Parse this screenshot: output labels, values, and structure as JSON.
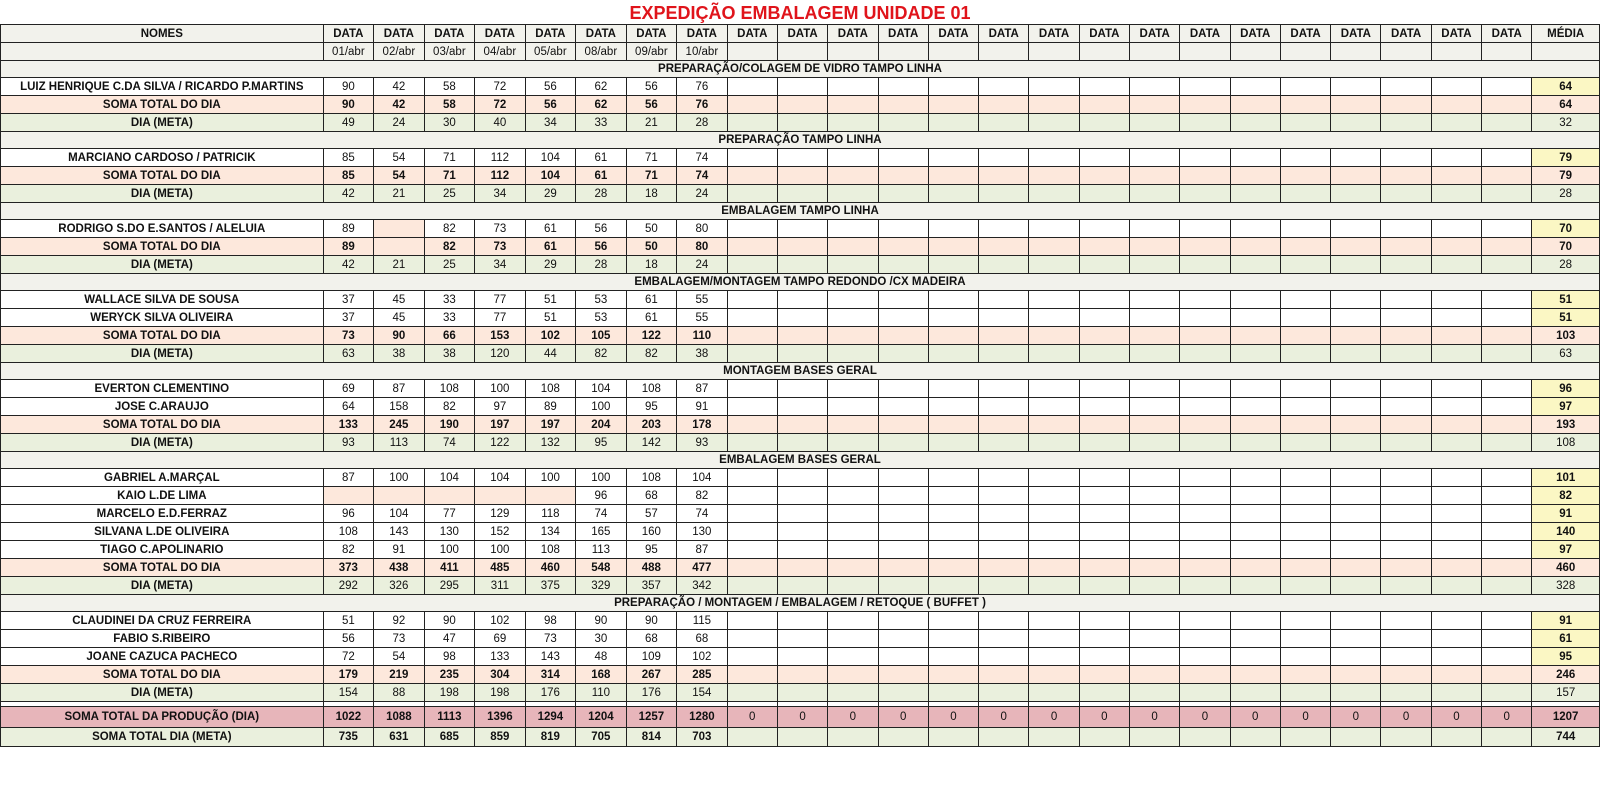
{
  "title": "EXPEDIÇÃO EMBALAGEM UNIDADE 01",
  "header": {
    "names": "NOMES",
    "data_label": "DATA",
    "avg_label": "MÉDIA",
    "dates": [
      "01/abr",
      "02/abr",
      "03/abr",
      "04/abr",
      "05/abr",
      "08/abr",
      "09/abr",
      "10/abr"
    ]
  },
  "labels": {
    "soma": "SOMA TOTAL DO DIA",
    "meta": "DIA (META)"
  },
  "sections": [
    {
      "title": "PREPARAÇÃO/COLAGEM DE VIDRO TAMPO LINHA",
      "people": [
        {
          "name": "LUIZ HENRIQUE C.DA SILVA / RICARDO P.MARTINS",
          "values": [
            "90",
            "42",
            "58",
            "72",
            "56",
            "62",
            "56",
            "76"
          ],
          "avg": "64"
        }
      ],
      "soma": {
        "values": [
          "90",
          "42",
          "58",
          "72",
          "56",
          "62",
          "56",
          "76"
        ],
        "avg": "64"
      },
      "meta": {
        "values": [
          "49",
          "24",
          "30",
          "40",
          "34",
          "33",
          "21",
          "28"
        ],
        "avg": "32"
      }
    },
    {
      "title": "PREPARAÇÃO TAMPO LINHA",
      "people": [
        {
          "name": "MARCIANO CARDOSO / PATRICIK",
          "values": [
            "85",
            "54",
            "71",
            "112",
            "104",
            "61",
            "71",
            "74"
          ],
          "avg": "79"
        }
      ],
      "soma": {
        "values": [
          "85",
          "54",
          "71",
          "112",
          "104",
          "61",
          "71",
          "74"
        ],
        "avg": "79"
      },
      "meta": {
        "values": [
          "42",
          "21",
          "25",
          "34",
          "29",
          "28",
          "18",
          "24"
        ],
        "avg": "28"
      }
    },
    {
      "title": "EMBALAGEM TAMPO LINHA",
      "people": [
        {
          "name": "RODRIGO S.DO E.SANTOS / ALELUIA",
          "values": [
            "89",
            "",
            "82",
            "73",
            "61",
            "56",
            "50",
            "80"
          ],
          "avg": "70",
          "blank": [
            1
          ]
        }
      ],
      "soma": {
        "values": [
          "89",
          "",
          "82",
          "73",
          "61",
          "56",
          "50",
          "80"
        ],
        "avg": "70"
      },
      "meta": {
        "values": [
          "42",
          "21",
          "25",
          "34",
          "29",
          "28",
          "18",
          "24"
        ],
        "avg": "28"
      }
    },
    {
      "title": "EMBALAGEM/MONTAGEM TAMPO REDONDO /CX MADEIRA",
      "people": [
        {
          "name": "WALLACE SILVA DE SOUSA",
          "values": [
            "37",
            "45",
            "33",
            "77",
            "51",
            "53",
            "61",
            "55"
          ],
          "avg": "51"
        },
        {
          "name": "WERYCK SILVA OLIVEIRA",
          "values": [
            "37",
            "45",
            "33",
            "77",
            "51",
            "53",
            "61",
            "55"
          ],
          "avg": "51"
        }
      ],
      "soma": {
        "values": [
          "73",
          "90",
          "66",
          "153",
          "102",
          "105",
          "122",
          "110"
        ],
        "avg": "103"
      },
      "meta": {
        "values": [
          "63",
          "38",
          "38",
          "120",
          "44",
          "82",
          "82",
          "38"
        ],
        "avg": "63"
      }
    },
    {
      "title": "MONTAGEM BASES GERAL",
      "people": [
        {
          "name": "EVERTON CLEMENTINO",
          "values": [
            "69",
            "87",
            "108",
            "100",
            "108",
            "104",
            "108",
            "87"
          ],
          "avg": "96"
        },
        {
          "name": "JOSE C.ARAUJO",
          "values": [
            "64",
            "158",
            "82",
            "97",
            "89",
            "100",
            "95",
            "91"
          ],
          "avg": "97"
        }
      ],
      "soma": {
        "values": [
          "133",
          "245",
          "190",
          "197",
          "197",
          "204",
          "203",
          "178"
        ],
        "avg": "193"
      },
      "meta": {
        "values": [
          "93",
          "113",
          "74",
          "122",
          "132",
          "95",
          "142",
          "93"
        ],
        "avg": "108"
      }
    },
    {
      "title": "EMBALAGEM BASES GERAL",
      "people": [
        {
          "name": "GABRIEL A.MARÇAL",
          "values": [
            "87",
            "100",
            "104",
            "104",
            "100",
            "100",
            "108",
            "104"
          ],
          "avg": "101"
        },
        {
          "name": "KAIO L.DE LIMA",
          "values": [
            "",
            "",
            "",
            "",
            "",
            "96",
            "68",
            "82"
          ],
          "avg": "82",
          "blank": [
            0,
            1,
            2,
            3,
            4
          ]
        },
        {
          "name": "MARCELO E.D.FERRAZ",
          "values": [
            "96",
            "104",
            "77",
            "129",
            "118",
            "74",
            "57",
            "74"
          ],
          "avg": "91"
        },
        {
          "name": "SILVANA L.DE OLIVEIRA",
          "values": [
            "108",
            "143",
            "130",
            "152",
            "134",
            "165",
            "160",
            "130"
          ],
          "avg": "140"
        },
        {
          "name": "TIAGO C.APOLINARIO",
          "values": [
            "82",
            "91",
            "100",
            "100",
            "108",
            "113",
            "95",
            "87"
          ],
          "avg": "97"
        }
      ],
      "soma": {
        "values": [
          "373",
          "438",
          "411",
          "485",
          "460",
          "548",
          "488",
          "477"
        ],
        "avg": "460"
      },
      "meta": {
        "values": [
          "292",
          "326",
          "295",
          "311",
          "375",
          "329",
          "357",
          "342"
        ],
        "avg": "328"
      }
    },
    {
      "title": "PREPARAÇÃO / MONTAGEM / EMBALAGEM / RETOQUE  ( BUFFET )",
      "people": [
        {
          "name": "CLAUDINEI DA CRUZ FERREIRA",
          "values": [
            "51",
            "92",
            "90",
            "102",
            "98",
            "90",
            "90",
            "115"
          ],
          "avg": "91"
        },
        {
          "name": "FABIO S.RIBEIRO",
          "values": [
            "56",
            "73",
            "47",
            "69",
            "73",
            "30",
            "68",
            "68"
          ],
          "avg": "61"
        },
        {
          "name": "JOANE CAZUCA PACHECO",
          "values": [
            "72",
            "54",
            "98",
            "133",
            "143",
            "48",
            "109",
            "102"
          ],
          "avg": "95"
        }
      ],
      "soma": {
        "values": [
          "179",
          "219",
          "235",
          "304",
          "314",
          "168",
          "267",
          "285"
        ],
        "avg": "246"
      },
      "meta": {
        "values": [
          "154",
          "88",
          "198",
          "198",
          "176",
          "110",
          "176",
          "154"
        ],
        "avg": "157"
      }
    }
  ],
  "totals": {
    "production": {
      "label": "SOMA TOTAL DA PRODUÇÃO (DIA)",
      "values": [
        "1022",
        "1088",
        "1113",
        "1396",
        "1294",
        "1204",
        "1257",
        "1280"
      ],
      "zero": "0",
      "avg": "1207"
    },
    "meta": {
      "label": "SOMA TOTAL DIA (META)",
      "values": [
        "735",
        "631",
        "685",
        "859",
        "819",
        "705",
        "814",
        "703"
      ],
      "avg": "744"
    }
  },
  "colors": {
    "title": "#e0141b",
    "header_bg": "#f2f2ec",
    "soma_bg": "#fde8dc",
    "meta_bg": "#eaf0dd",
    "avg_bg": "#fbf7c4",
    "total_production_bg": "#e7b5ba"
  }
}
